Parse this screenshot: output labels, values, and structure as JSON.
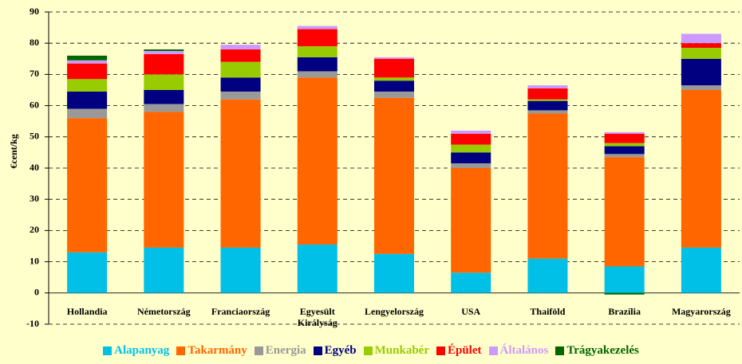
{
  "chart_data": {
    "type": "stacked-bar",
    "y_label": "€cent/kg",
    "categories": [
      "Hollandia",
      "Németország",
      "Franciaország",
      "Egyesült Királyság",
      "Lengyelország",
      "USA",
      "Thaiföld",
      "Brazília",
      "Magyarország"
    ],
    "series": [
      {
        "name": "Alapanyag",
        "color": "#00c0e8",
        "values": [
          13,
          14.5,
          14.5,
          15.5,
          12.5,
          6.5,
          11,
          8.5,
          14.5
        ]
      },
      {
        "name": "Takarmány",
        "color": "#ff6600",
        "values": [
          43,
          43.5,
          47.5,
          53.5,
          50,
          33.5,
          46.5,
          35,
          50.5
        ]
      },
      {
        "name": "Energia",
        "color": "#999999",
        "values": [
          3,
          2.5,
          2.5,
          2,
          2,
          1.5,
          1,
          1,
          1.5
        ]
      },
      {
        "name": "Egyéb",
        "color": "#000080",
        "values": [
          5.5,
          4.5,
          4.5,
          4.5,
          3.5,
          3.5,
          3,
          2.5,
          8.5
        ]
      },
      {
        "name": "Munkabér",
        "color": "#99cc00",
        "values": [
          4,
          5,
          5,
          3.5,
          1,
          2.5,
          0.5,
          1,
          3.5
        ]
      },
      {
        "name": "Épület",
        "color": "#ff0000",
        "values": [
          5,
          6.5,
          4,
          5.5,
          6,
          3.5,
          3.5,
          3,
          1.5
        ]
      },
      {
        "name": "Általános",
        "color": "#cc99ff",
        "values": [
          1,
          1,
          1.5,
          1,
          0.5,
          1,
          1,
          0.5,
          3
        ]
      },
      {
        "name": "Trágyakezelés",
        "color": "#006600",
        "values": [
          1.5,
          0.5,
          0,
          0,
          0,
          0,
          0,
          -0.5,
          0
        ]
      }
    ],
    "ylim": [
      -10,
      90
    ],
    "yticks": [
      -10,
      0,
      10,
      20,
      30,
      40,
      50,
      60,
      70,
      80,
      90
    ],
    "grid": true
  }
}
